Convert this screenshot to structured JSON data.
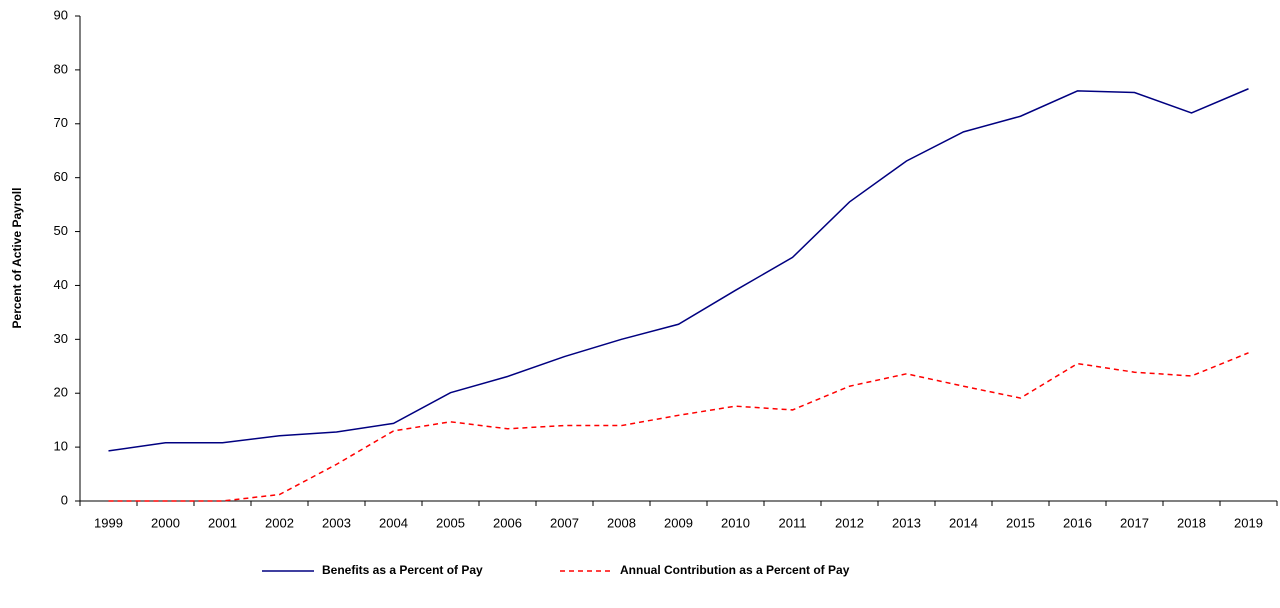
{
  "chart_data": {
    "type": "line",
    "y_label": "Percent of Active Payroll",
    "categories": [
      "1999",
      "2000",
      "2001",
      "2002",
      "2003",
      "2004",
      "2005",
      "2006",
      "2007",
      "2008",
      "2009",
      "2010",
      "2011",
      "2012",
      "2013",
      "2014",
      "2015",
      "2016",
      "2017",
      "2018",
      "2019"
    ],
    "series": [
      {
        "name": "Benefits as a Percent of Pay",
        "color": "#000080",
        "dash": false,
        "values": [
          9.3,
          10.8,
          10.8,
          12.1,
          12.8,
          14.4,
          20.1,
          23.1,
          26.8,
          30,
          32.8,
          39.1,
          45.2,
          55.5,
          63.1,
          68.5,
          71.4,
          76.1,
          75.8,
          72,
          76.5
        ]
      },
      {
        "name": "Annual Contribution as a Percent of Pay",
        "color": "#ff0000",
        "dash": true,
        "values": [
          0,
          0,
          0,
          1.2,
          6.8,
          13,
          14.7,
          13.4,
          14,
          14,
          15.9,
          17.6,
          16.9,
          21.3,
          23.6,
          21.3,
          19.1,
          25.5,
          23.9,
          23.2,
          27.5
        ]
      }
    ],
    "ylim": [
      0,
      90
    ],
    "yticks": [
      0,
      10,
      20,
      30,
      40,
      50,
      60,
      70,
      80,
      90
    ]
  }
}
